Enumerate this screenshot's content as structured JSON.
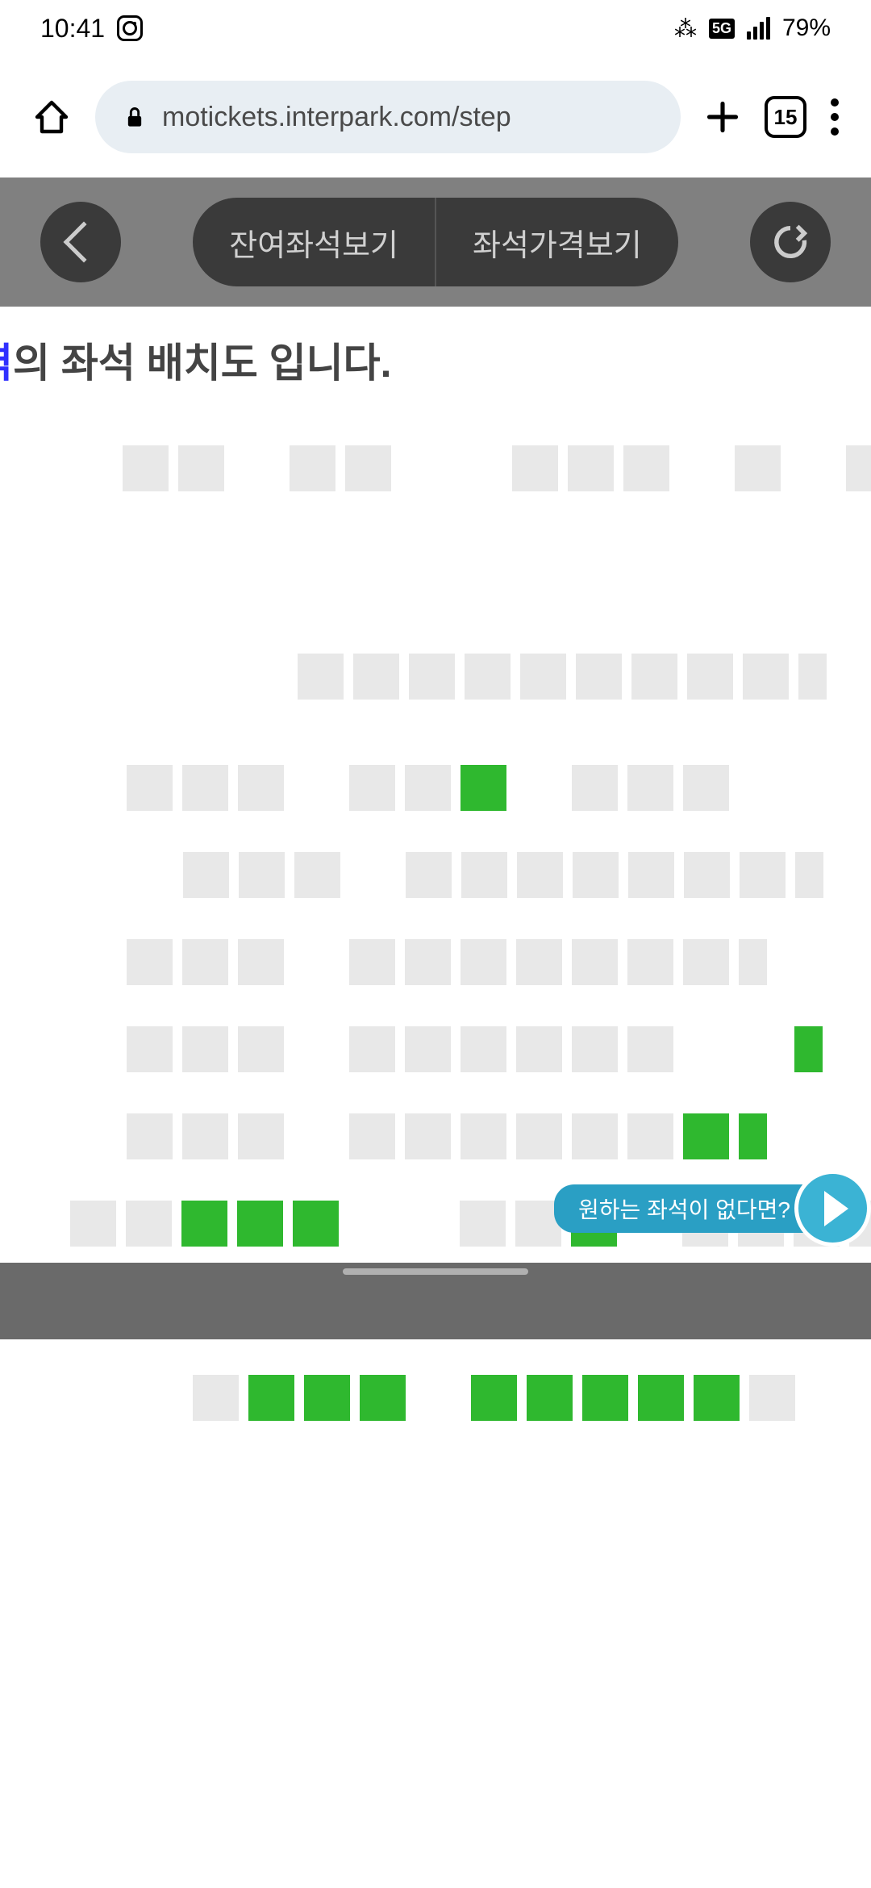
{
  "status": {
    "time": "10:41",
    "battery": "79%",
    "network": "5G"
  },
  "browser": {
    "url": "motickets.interpark.com/step",
    "tabCount": "15"
  },
  "header": {
    "leftBtn": "잔여좌석보기",
    "rightBtn": "좌석가격보기"
  },
  "title": {
    "accent": "역",
    "rest": "의 좌석 배치도 입니다."
  },
  "seats": {
    "available_color": "#2fb82f",
    "unavailable_color": "#e8e8e8",
    "rows": [
      {
        "offset": 140,
        "cells": [
          "u",
          "u",
          "g",
          "u",
          "u",
          "g",
          "g",
          "u",
          "u",
          "u",
          "g",
          "u",
          "g",
          "u"
        ]
      },
      {
        "offset": 357,
        "cells": [
          "u",
          "u",
          "u",
          "u",
          "u",
          "u",
          "u",
          "u",
          "u",
          "uE"
        ]
      },
      {
        "offset": 145,
        "cells": [
          "u",
          "u",
          "u",
          "g",
          "u",
          "u",
          "a",
          "g",
          "u",
          "u",
          "u"
        ]
      },
      {
        "offset": 215,
        "cells": [
          "u",
          "u",
          "u",
          "g",
          "u",
          "u",
          "u",
          "u",
          "u",
          "u",
          "u",
          "uE"
        ]
      },
      {
        "offset": 145,
        "cells": [
          "u",
          "u",
          "u",
          "g",
          "u",
          "u",
          "u",
          "u",
          "u",
          "u",
          "u",
          "uE"
        ]
      },
      {
        "offset": 145,
        "cells": [
          "u",
          "u",
          "u",
          "g",
          "u",
          "u",
          "u",
          "u",
          "u",
          "u",
          "g",
          "g",
          "aE"
        ]
      },
      {
        "offset": 145,
        "cells": [
          "u",
          "u",
          "u",
          "g",
          "u",
          "u",
          "u",
          "u",
          "u",
          "u",
          "a",
          "aE"
        ]
      },
      {
        "offset": 75,
        "cells": [
          "u",
          "u",
          "a",
          "a",
          "a",
          "g",
          "g",
          "u",
          "u",
          "a",
          "g",
          "u",
          "u",
          "u",
          "uE"
        ]
      },
      {
        "offset": 75,
        "cells": [
          "a",
          "a",
          "a",
          "a",
          "a",
          "g",
          "a",
          "a",
          "a",
          "g",
          "u",
          "g",
          "a",
          "uE"
        ],
        "label": "l"
      },
      {
        "offset": 215,
        "cells": [
          "u",
          "a",
          "a",
          "a",
          "g",
          "a",
          "a",
          "a",
          "a",
          "a",
          "u"
        ],
        "label": "l"
      }
    ]
  },
  "float": {
    "text": "원하는 좌석이 없다면?"
  }
}
